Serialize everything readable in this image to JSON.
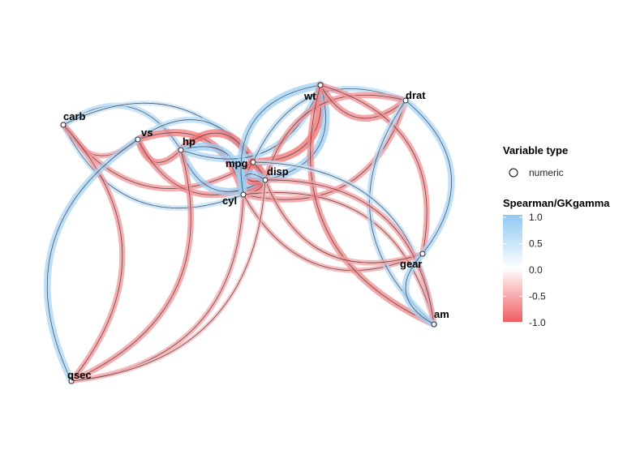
{
  "nodes": [
    {
      "id": "carb",
      "label": "carb"
    },
    {
      "id": "vs",
      "label": "vs"
    },
    {
      "id": "hp",
      "label": "hp"
    },
    {
      "id": "mpg",
      "label": "mpg"
    },
    {
      "id": "disp",
      "label": "disp"
    },
    {
      "id": "cyl",
      "label": "cyl"
    },
    {
      "id": "wt",
      "label": "wt"
    },
    {
      "id": "drat",
      "label": "drat"
    },
    {
      "id": "gear",
      "label": "gear"
    },
    {
      "id": "am",
      "label": "am"
    },
    {
      "id": "qsec",
      "label": "qsec"
    }
  ],
  "edges": [
    {
      "source": "carb",
      "target": "vs",
      "value": -0.6
    },
    {
      "source": "carb",
      "target": "hp",
      "value": 0.7
    },
    {
      "source": "carb",
      "target": "mpg",
      "value": -0.66
    },
    {
      "source": "carb",
      "target": "disp",
      "value": 0.54
    },
    {
      "source": "carb",
      "target": "cyl",
      "value": 0.58
    },
    {
      "source": "carb",
      "target": "qsec",
      "value": -0.66
    },
    {
      "source": "vs",
      "target": "hp",
      "value": -0.75
    },
    {
      "source": "vs",
      "target": "mpg",
      "value": 0.7
    },
    {
      "source": "vs",
      "target": "disp",
      "value": -0.71
    },
    {
      "source": "vs",
      "target": "cyl",
      "value": -0.81
    },
    {
      "source": "vs",
      "target": "qsec",
      "value": 0.79
    },
    {
      "source": "hp",
      "target": "mpg",
      "value": -0.89
    },
    {
      "source": "hp",
      "target": "disp",
      "value": 0.85
    },
    {
      "source": "hp",
      "target": "cyl",
      "value": 0.9
    },
    {
      "source": "hp",
      "target": "wt",
      "value": 0.77
    },
    {
      "source": "hp",
      "target": "qsec",
      "value": -0.67
    },
    {
      "source": "mpg",
      "target": "wt",
      "value": -0.89
    },
    {
      "source": "mpg",
      "target": "drat",
      "value": 0.65
    },
    {
      "source": "mpg",
      "target": "disp",
      "value": -0.91
    },
    {
      "source": "mpg",
      "target": "cyl",
      "value": -0.91
    },
    {
      "source": "disp",
      "target": "wt",
      "value": 0.9
    },
    {
      "source": "disp",
      "target": "drat",
      "value": -0.68
    },
    {
      "source": "disp",
      "target": "cyl",
      "value": 0.93
    },
    {
      "source": "cyl",
      "target": "wt",
      "value": 0.86
    },
    {
      "source": "cyl",
      "target": "drat",
      "value": -0.68
    },
    {
      "source": "cyl",
      "target": "qsec",
      "value": -0.57
    },
    {
      "source": "cyl",
      "target": "gear",
      "value": -0.56
    },
    {
      "source": "cyl",
      "target": "am",
      "value": -0.52
    },
    {
      "source": "wt",
      "target": "drat",
      "value": -0.75
    },
    {
      "source": "wt",
      "target": "gear",
      "value": -0.67
    },
    {
      "source": "wt",
      "target": "am",
      "value": -0.74
    },
    {
      "source": "drat",
      "target": "gear",
      "value": 0.75
    },
    {
      "source": "drat",
      "target": "am",
      "value": 0.68
    },
    {
      "source": "mpg",
      "target": "am",
      "value": 0.56
    },
    {
      "source": "disp",
      "target": "gear",
      "value": -0.59
    },
    {
      "source": "disp",
      "target": "am",
      "value": -0.62
    },
    {
      "source": "gear",
      "target": "am",
      "value": 0.79
    },
    {
      "source": "disp",
      "target": "qsec",
      "value": -0.45
    }
  ],
  "legend": {
    "type_title": "Variable type",
    "type_item": "numeric",
    "color_title": "Spearman/GKgamma",
    "ticks": [
      "1.0",
      "0.5",
      "0.0",
      "-0.5",
      "-1.0"
    ],
    "colors": {
      "positive": "#8fc8f4",
      "zero": "#ffffff",
      "negative": "#ef5d61"
    }
  }
}
